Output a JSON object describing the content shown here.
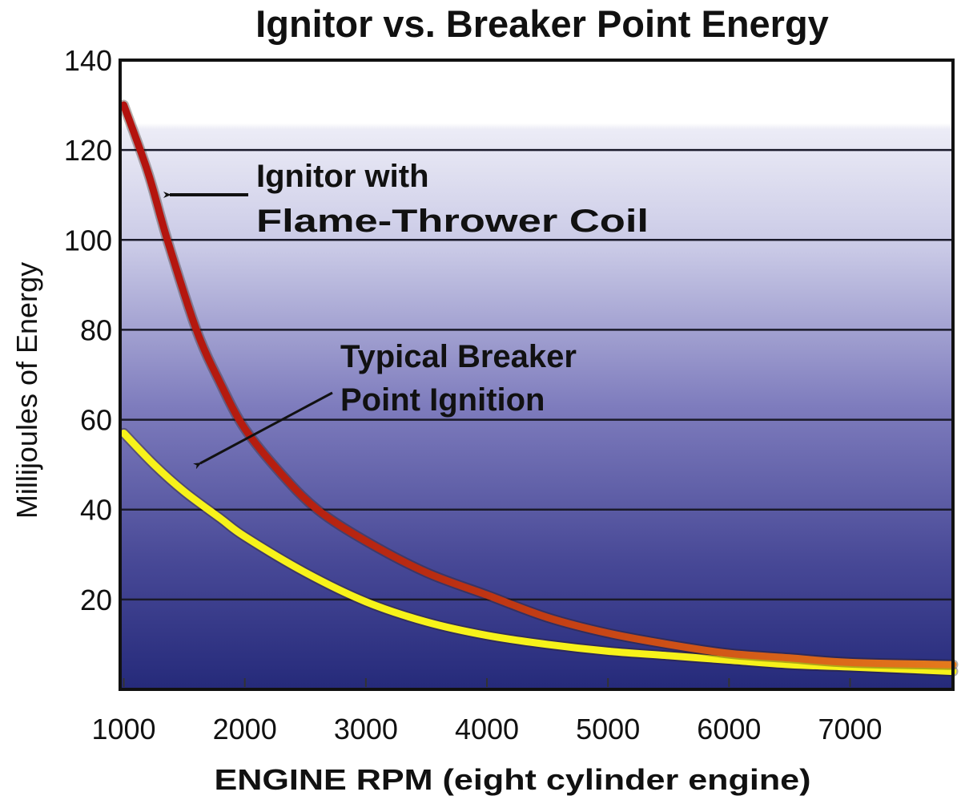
{
  "chart_data": {
    "type": "line",
    "title": "Ignitor vs. Breaker Point Energy",
    "xlabel": "ENGINE RPM (eight cylinder engine)",
    "ylabel": "Millijoules of Energy",
    "xlim": [
      970,
      7850
    ],
    "ylim": [
      0,
      140
    ],
    "x_ticks": [
      1000,
      2000,
      3000,
      4000,
      5000,
      6000,
      7000
    ],
    "y_ticks": [
      20,
      40,
      60,
      80,
      100,
      120,
      140
    ],
    "grid": "horizontal",
    "background": "gradient white to dark blue",
    "series": [
      {
        "name": "Ignitor with Flame-Thrower Coil",
        "color": "#b3120e",
        "color_end": "#e0661a",
        "points": [
          [
            1000,
            130
          ],
          [
            1200,
            115
          ],
          [
            1360,
            100
          ],
          [
            1600,
            80
          ],
          [
            1800,
            68
          ],
          [
            2000,
            58
          ],
          [
            2300,
            48
          ],
          [
            2600,
            40
          ],
          [
            3000,
            33
          ],
          [
            3500,
            26
          ],
          [
            4000,
            21
          ],
          [
            4500,
            16
          ],
          [
            5000,
            12.5
          ],
          [
            5500,
            10
          ],
          [
            6000,
            8
          ],
          [
            6500,
            7
          ],
          [
            7000,
            6
          ],
          [
            7850,
            5.5
          ]
        ]
      },
      {
        "name": "Typical Breaker Point Ignition",
        "color": "#f7f21a",
        "points": [
          [
            1000,
            57
          ],
          [
            1250,
            50
          ],
          [
            1500,
            44
          ],
          [
            1800,
            38
          ],
          [
            2000,
            34
          ],
          [
            2500,
            26
          ],
          [
            3000,
            19.5
          ],
          [
            3500,
            15
          ],
          [
            4000,
            12
          ],
          [
            4500,
            10
          ],
          [
            5000,
            8.5
          ],
          [
            5500,
            7.5
          ],
          [
            6000,
            6.5
          ],
          [
            6500,
            5.5
          ],
          [
            7000,
            5
          ],
          [
            7850,
            4
          ]
        ]
      }
    ],
    "annotations": [
      {
        "lines": [
          "Ignitor with",
          "Flame-Thrower Coil"
        ],
        "points_to": "Ignitor with Flame-Thrower Coil"
      },
      {
        "lines": [
          "Typical Breaker",
          "Point Ignition"
        ],
        "points_to": "Typical Breaker Point Ignition"
      }
    ]
  }
}
